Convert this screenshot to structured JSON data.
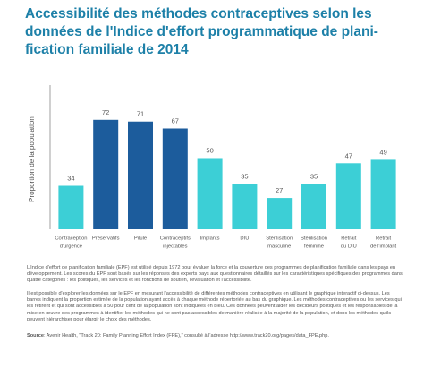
{
  "chart_data": {
    "type": "bar",
    "title": [
      "Accessibilité des méthodes contraceptives selon les",
      "données de l'Indice d'effort programmatique de plani-",
      "fication familiale de 2014"
    ],
    "y_label": "Proportion de la population",
    "categories": [
      [
        "Contraception",
        "d'urgence"
      ],
      [
        "Préservatifs"
      ],
      [
        "Pilule"
      ],
      [
        "Contraceptifs",
        "injectables"
      ],
      [
        "Implants"
      ],
      [
        "DIU"
      ],
      [
        "Stérilisation",
        "masculine"
      ],
      [
        "Stérilisation",
        "féminine"
      ],
      [
        "Retrait",
        "du DIU"
      ],
      [
        "Retrait",
        "de l'implant"
      ]
    ],
    "values": [
      34,
      72,
      71,
      67,
      50,
      35,
      27,
      35,
      47,
      49
    ],
    "colors": [
      "#3ccfd6",
      "#1c5c9c",
      "#1c5c9c",
      "#1c5c9c",
      "#3ccfd6",
      "#3ccfd6",
      "#3ccfd6",
      "#3ccfd6",
      "#3ccfd6",
      "#3ccfd6"
    ],
    "ylim": [
      9,
      92
    ],
    "notes": [
      "L'Indice d'effort de planification familiale (EPF) est utilisé depuis 1972 pour évaluer la force et la couverture des programmes de planification familiale dans les pays en développement. Les scores du EPF sont basés sur les réponses des experts pays aux questionnaires détaillés sur les caractéristiques spécifiques des programmes dans quatre catégories : les politiques, les services et les fonctions de soutien, l'évaluation et l'accessibilité.",
      "Il est possible d'explorer les données sur le EPF en mesurant l'accessibilité de différentes méthodes contraceptives en utilisant le graphique interactif ci-dessus. Les barres indiquent la proportion estimée de la population ayant accès à chaque méthode répertoriée au bas du graphique. Les méthodes contraceptives ou les services qui les retirent et qui sont accessibles à 50 pour cent de la population sont indiquées en bleu. Ces données peuvent aider les décideurs politiques et les responsables de la mise en œuvre des programmes à identifier les méthodes qui ne sont pas accessibles de manière réalisée à la majorité de la population, et donc les méthodes qu'ils peuvent hiérarchiser pour élargir le choix des méthodes."
    ],
    "source_label": "Source",
    "source": ": Avenir Health, \"Track 20: Family Planning Effort Index (FPE),\" consulté à l'adresse http://www.track20.org/pages/data_FPE.php."
  }
}
